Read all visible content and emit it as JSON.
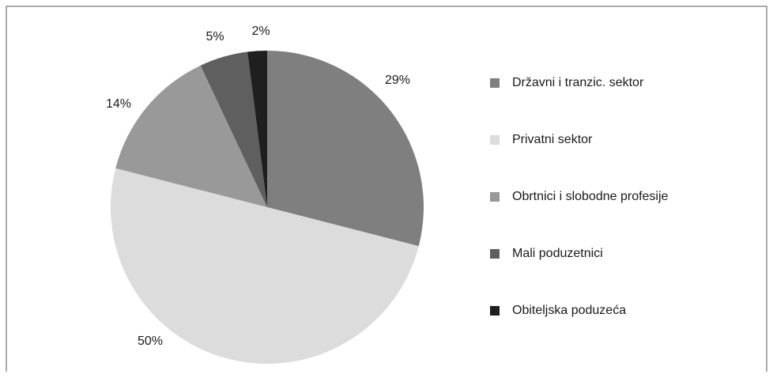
{
  "chart_data": {
    "type": "pie",
    "categories": [
      "Državni i tranzic. sektor",
      "Privatni sektor",
      "Obrtnici i slobodne profesije",
      "Mali poduzetnici",
      "Obiteljska poduzeća"
    ],
    "values": [
      29,
      50,
      14,
      5,
      2
    ],
    "value_labels": [
      "29%",
      "50%",
      "14%",
      "5%",
      "2%"
    ],
    "colors": [
      "#7f7f7f",
      "#dcdcdc",
      "#999999",
      "#5f5f5f",
      "#1f1f1f"
    ],
    "legend": "right"
  }
}
